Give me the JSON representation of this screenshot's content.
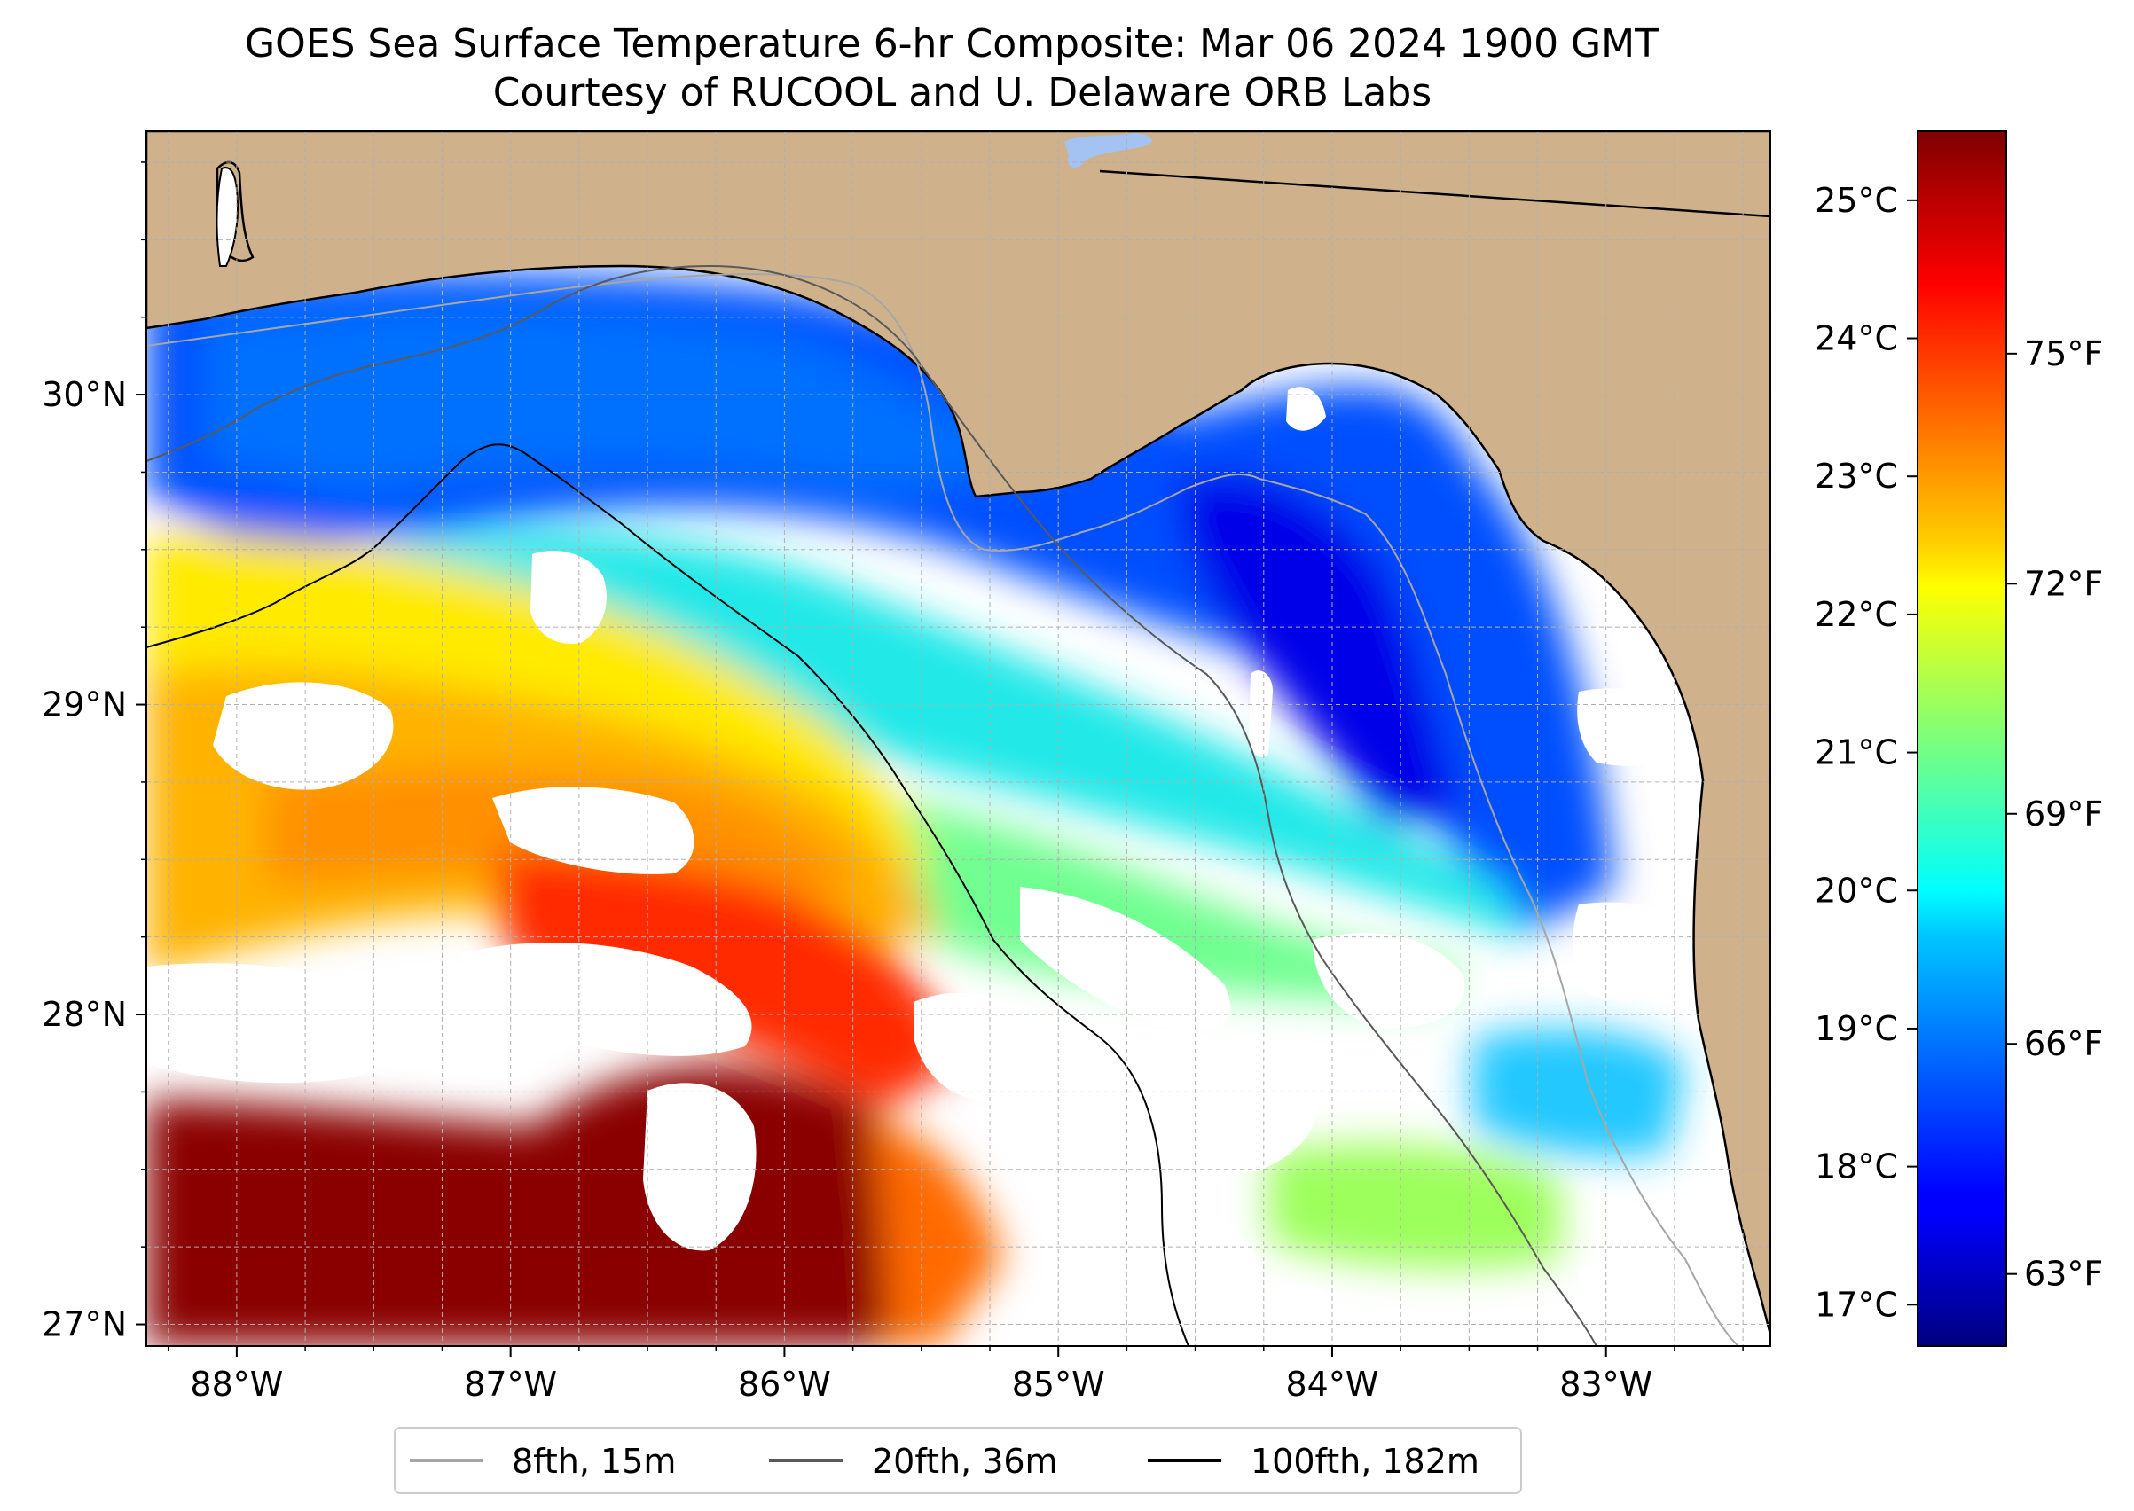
{
  "title": {
    "line1": "GOES Sea Surface Temperature 6-hr Composite: Mar 06 2024 1900 GMT",
    "line2": "Courtesy of RUCOOL and U. Delaware ORB Labs"
  },
  "map": {
    "lon_range": [
      -88.33,
      -82.4
    ],
    "lat_range": [
      26.93,
      30.85
    ],
    "lon_ticks": [
      -88,
      -87,
      -86,
      -85,
      -84,
      -83
    ],
    "lon_tick_labels": [
      "88°W",
      "87°W",
      "86°W",
      "85°W",
      "84°W",
      "83°W"
    ],
    "lat_ticks": [
      27,
      28,
      29,
      30
    ],
    "lat_tick_labels": [
      "27°N",
      "28°N",
      "29°N",
      "30°N"
    ],
    "land_color": "#cfb28b",
    "no_data_color": "#ffffff",
    "gridlines": true
  },
  "colorbar": {
    "colormap": "jet",
    "celsius_range": [
      16.7,
      25.5
    ],
    "celsius_ticks": [
      17,
      18,
      19,
      20,
      21,
      22,
      23,
      24,
      25
    ],
    "celsius_labels": [
      "17°C",
      "18°C",
      "19°C",
      "20°C",
      "21°C",
      "22°C",
      "23°C",
      "24°C",
      "25°C"
    ],
    "fahrenheit_ticks": [
      63,
      66,
      69,
      72,
      75
    ],
    "fahrenheit_labels": [
      "63°F",
      "66°F",
      "69°F",
      "72°F",
      "75°F"
    ]
  },
  "legend": {
    "placement": "bottom-center",
    "items": [
      {
        "label": "8fth, 15m",
        "color": "#a6a6a6"
      },
      {
        "label": "20fth, 36m",
        "color": "#595959"
      },
      {
        "label": "100fth, 182m",
        "color": "#000000"
      }
    ]
  }
}
